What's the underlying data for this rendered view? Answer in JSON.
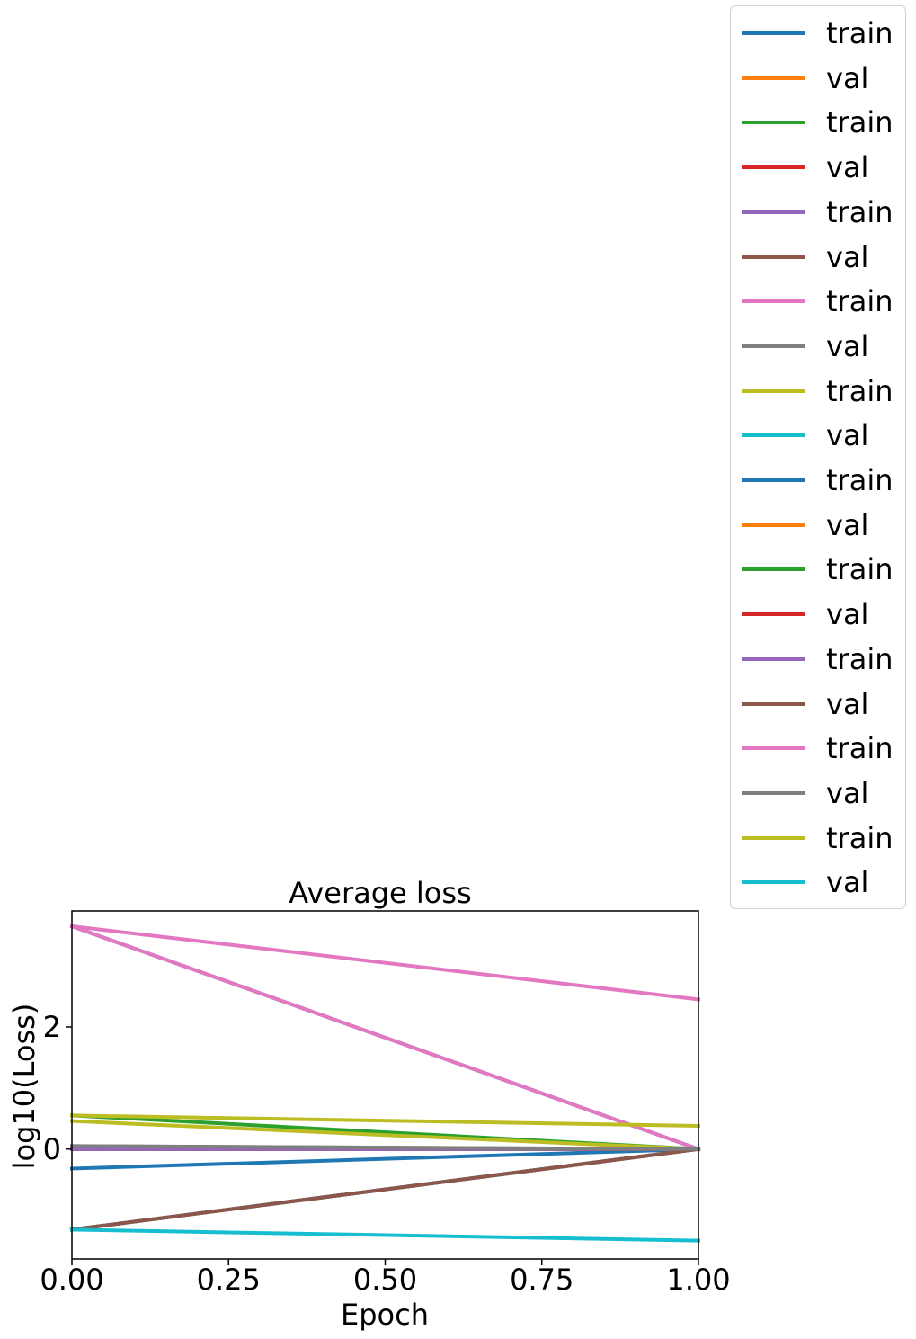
{
  "chart_data": {
    "type": "line",
    "title": "Average loss",
    "xlabel": "Epoch",
    "ylabel": "log10(Loss)",
    "xlim": [
      0.0,
      1.0
    ],
    "ylim": [
      -1.8,
      3.9
    ],
    "xticks": [
      "0.00",
      "0.25",
      "0.50",
      "0.75",
      "1.00"
    ],
    "yticks": [
      "0",
      "2"
    ],
    "grid": false,
    "legend_position": "outside-top-right",
    "x": [
      0,
      1
    ],
    "series": [
      {
        "name": "train",
        "color": "#1f77b4",
        "values": [
          3.65,
          0.0
        ]
      },
      {
        "name": "val",
        "color": "#ff7f0e",
        "values": [
          -1.32,
          0.0
        ]
      },
      {
        "name": "train",
        "color": "#2ca02c",
        "values": [
          0.55,
          0.0
        ]
      },
      {
        "name": "val",
        "color": "#d62728",
        "values": [
          -1.32,
          0.0
        ]
      },
      {
        "name": "train",
        "color": "#9467bd",
        "values": [
          0.0,
          0.0
        ]
      },
      {
        "name": "val",
        "color": "#8c564b",
        "values": [
          -1.32,
          0.0
        ]
      },
      {
        "name": "train",
        "color": "#e377c2",
        "values": [
          3.65,
          0.0
        ]
      },
      {
        "name": "val",
        "color": "#7f7f7f",
        "values": [
          0.05,
          0.0
        ]
      },
      {
        "name": "train",
        "color": "#bcbd22",
        "values": [
          0.46,
          0.0
        ]
      },
      {
        "name": "val",
        "color": "#17becf",
        "values": [
          -1.32,
          0.0
        ]
      },
      {
        "name": "train",
        "color": "#1f77b4",
        "values": [
          -0.32,
          0.0
        ]
      },
      {
        "name": "val",
        "color": "#ff7f0e",
        "values": [
          0.0,
          0.0
        ]
      },
      {
        "name": "train",
        "color": "#2ca02c",
        "values": [
          0.0,
          0.0
        ]
      },
      {
        "name": "val",
        "color": "#d62728",
        "values": [
          0.0,
          0.0
        ]
      },
      {
        "name": "train",
        "color": "#9467bd",
        "values": [
          0.0,
          0.0
        ]
      },
      {
        "name": "val",
        "color": "#8c564b",
        "values": [
          -1.32,
          0.0
        ]
      },
      {
        "name": "train",
        "color": "#e377c2",
        "values": [
          3.65,
          2.45
        ]
      },
      {
        "name": "val",
        "color": "#7f7f7f",
        "values": [
          0.05,
          0.0
        ]
      },
      {
        "name": "train",
        "color": "#bcbd22",
        "values": [
          0.55,
          0.38
        ]
      },
      {
        "name": "val",
        "color": "#17becf",
        "values": [
          -1.32,
          -1.5
        ]
      }
    ]
  }
}
